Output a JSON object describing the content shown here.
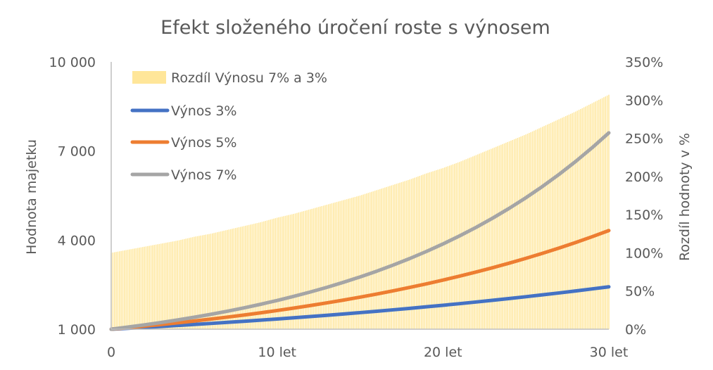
{
  "chart_data": {
    "type": "line",
    "title": "Efekt složeného úročení roste s výnosem",
    "ylabel": "Hodnota majetku",
    "y2label": "Rozdíl hodnoty v %",
    "x": [
      0,
      1,
      2,
      3,
      4,
      5,
      6,
      7,
      8,
      9,
      10,
      11,
      12,
      13,
      14,
      15,
      16,
      17,
      18,
      19,
      20,
      21,
      22,
      23,
      24,
      25,
      26,
      27,
      28,
      29,
      30
    ],
    "xlim": [
      0,
      30
    ],
    "x_ticks": [
      {
        "value": 0,
        "label": "0"
      },
      {
        "value": 10,
        "label": "10 let"
      },
      {
        "value": 20,
        "label": "20 let"
      },
      {
        "value": 30,
        "label": "30 let"
      }
    ],
    "ylim": [
      1000,
      10000
    ],
    "y_ticks": [
      {
        "value": 1000,
        "label": "1 000"
      },
      {
        "value": 4000,
        "label": "4 000"
      },
      {
        "value": 7000,
        "label": "7 000"
      },
      {
        "value": 10000,
        "label": "10 000"
      }
    ],
    "y2lim": [
      0,
      350
    ],
    "y2_ticks": [
      {
        "value": 0,
        "label": "0%"
      },
      {
        "value": 50,
        "label": "50%"
      },
      {
        "value": 100,
        "label": "100%"
      },
      {
        "value": 150,
        "label": "150%"
      },
      {
        "value": 200,
        "label": "200%"
      },
      {
        "value": 250,
        "label": "250%"
      },
      {
        "value": 300,
        "label": "300%"
      },
      {
        "value": 350,
        "label": "350%"
      }
    ],
    "series": [
      {
        "name": "Rozdíl Výnosu 7% a 3%",
        "kind": "bar",
        "axis": "right",
        "color": "#FFE699",
        "values": [
          100,
          104,
          108,
          112,
          116,
          121,
          125,
          130,
          135,
          140,
          146,
          151,
          157,
          163,
          169,
          175,
          182,
          189,
          196,
          204,
          211,
          219,
          228,
          237,
          246,
          255,
          265,
          275,
          285,
          296,
          307
        ]
      },
      {
        "name": "Výnos 3%",
        "kind": "line",
        "axis": "left",
        "color": "#4472C4",
        "values": [
          1000,
          1030,
          1061,
          1093,
          1126,
          1159,
          1194,
          1230,
          1267,
          1305,
          1344,
          1384,
          1426,
          1469,
          1513,
          1558,
          1605,
          1653,
          1702,
          1754,
          1806,
          1860,
          1916,
          1974,
          2033,
          2094,
          2157,
          2221,
          2288,
          2357,
          2427
        ]
      },
      {
        "name": "Výnos 5%",
        "kind": "line",
        "axis": "left",
        "color": "#ED7D31",
        "values": [
          1000,
          1050,
          1103,
          1158,
          1216,
          1276,
          1340,
          1407,
          1477,
          1551,
          1629,
          1710,
          1796,
          1886,
          1980,
          2079,
          2183,
          2292,
          2407,
          2527,
          2653,
          2786,
          2925,
          3072,
          3225,
          3386,
          3556,
          3733,
          3920,
          4116,
          4322
        ]
      },
      {
        "name": "Výnos 7%",
        "kind": "line",
        "axis": "left",
        "color": "#A5A5A5",
        "values": [
          1000,
          1070,
          1145,
          1225,
          1311,
          1403,
          1501,
          1606,
          1718,
          1838,
          1967,
          2105,
          2252,
          2410,
          2579,
          2759,
          2952,
          3159,
          3380,
          3617,
          3870,
          4141,
          4430,
          4741,
          5072,
          5427,
          5807,
          6214,
          6649,
          7114,
          7612
        ]
      }
    ],
    "legend_position": "top-left",
    "grid": false
  }
}
